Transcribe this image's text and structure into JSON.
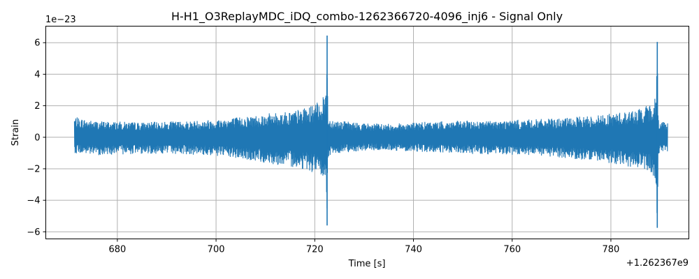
{
  "figure": {
    "title": "H-H1_O3ReplayMDC_iDQ_combo-1262366720-4096_inj6 - Signal Only",
    "offset_label": "1e−23",
    "x_offset_label": "+1.262367e9"
  },
  "chart_data": {
    "type": "line",
    "title": "H-H1_O3ReplayMDC_iDQ_combo-1262366720-4096_inj6 - Signal Only",
    "xlabel": "Time [s]",
    "ylabel": "Strain",
    "xlim": [
      665.5,
      795.8
    ],
    "ylim": [
      -6.45,
      7.05
    ],
    "y_scale_factor": "1e-23",
    "x_offset": 1262367000,
    "grid": true,
    "x_ticks": [
      680,
      700,
      720,
      740,
      760,
      780
    ],
    "x_tick_labels": [
      "680",
      "700",
      "720",
      "740",
      "760",
      "780"
    ],
    "y_ticks": [
      -6,
      -4,
      -2,
      0,
      2,
      4,
      6
    ],
    "y_tick_labels": [
      "−6",
      "−4",
      "−2",
      "0",
      "2",
      "4",
      "6"
    ],
    "series": [
      {
        "color": "#1f77b4",
        "x": [
          671.3,
          675,
          680,
          685,
          690,
          695,
          700,
          705,
          710,
          715,
          718,
          720,
          721.5,
          722.3,
          722.5,
          722.7,
          723,
          725,
          730,
          735,
          740,
          745,
          750,
          755,
          760,
          765,
          770,
          775,
          780,
          785,
          787,
          788.5,
          789.2,
          789.4,
          789.6,
          790,
          791.5
        ],
        "upper": [
          1.3,
          1.05,
          1.0,
          0.95,
          1.0,
          1.05,
          1.15,
          1.3,
          1.5,
          1.65,
          1.85,
          2.1,
          2.4,
          3.0,
          6.45,
          1.2,
          1.2,
          1.05,
          0.9,
          0.85,
          0.95,
          1.0,
          1.05,
          1.05,
          1.1,
          1.15,
          1.2,
          1.35,
          1.5,
          1.75,
          1.95,
          2.2,
          2.8,
          6.05,
          1.2,
          1.1,
          0.95
        ],
        "lower": [
          -1.0,
          -1.15,
          -1.1,
          -1.05,
          -1.05,
          -1.1,
          -1.2,
          -1.4,
          -1.65,
          -1.85,
          -2.05,
          -2.3,
          -2.6,
          -3.2,
          -5.6,
          -1.25,
          -1.2,
          -1.0,
          -0.85,
          -0.85,
          -0.9,
          -1.0,
          -1.05,
          -1.1,
          -1.15,
          -1.2,
          -1.3,
          -1.45,
          -1.65,
          -1.95,
          -2.1,
          -2.5,
          -3.3,
          -5.75,
          -1.15,
          -1.0,
          -0.95
        ]
      }
    ]
  }
}
